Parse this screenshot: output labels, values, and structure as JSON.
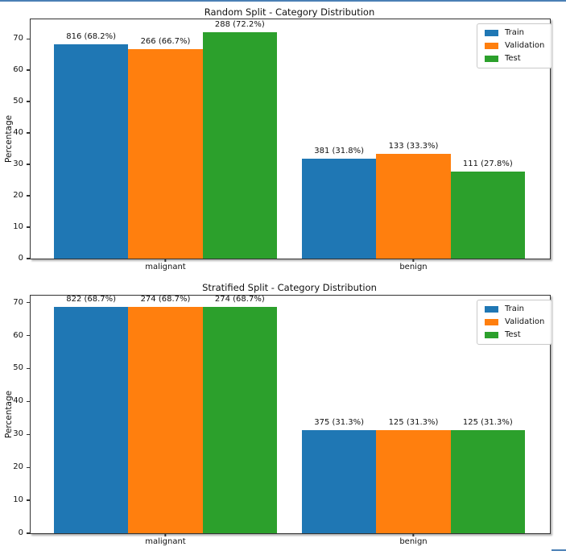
{
  "page": {
    "accent_color": "#4a7fb5",
    "background": "#ffffff"
  },
  "chart_data": [
    {
      "type": "bar",
      "title": "Random Split - Category Distribution",
      "xlabel": "",
      "ylabel": "Percentage",
      "categories": [
        "malignant",
        "benign"
      ],
      "yticks": [
        0,
        10,
        20,
        30,
        40,
        50,
        60,
        70
      ],
      "ylim": [
        0,
        76.2
      ],
      "grid": false,
      "legend_position": "upper right",
      "series": [
        {
          "name": "Train",
          "color": "#1f77b4",
          "values": [
            68.2,
            31.8
          ],
          "counts": [
            816,
            381
          ],
          "labels": [
            "816 (68.2%)",
            "381 (31.8%)"
          ]
        },
        {
          "name": "Validation",
          "color": "#ff7f0e",
          "values": [
            66.7,
            33.3
          ],
          "counts": [
            266,
            133
          ],
          "labels": [
            "266 (66.7%)",
            "133 (33.3%)"
          ]
        },
        {
          "name": "Test",
          "color": "#2ca02c",
          "values": [
            72.2,
            27.8
          ],
          "counts": [
            288,
            111
          ],
          "labels": [
            "288 (72.2%)",
            "111 (27.8%)"
          ]
        }
      ]
    },
    {
      "type": "bar",
      "title": "Stratified Split - Category Distribution",
      "xlabel": "",
      "ylabel": "Percentage",
      "categories": [
        "malignant",
        "benign"
      ],
      "yticks": [
        0,
        10,
        20,
        30,
        40,
        50,
        60,
        70
      ],
      "ylim": [
        0,
        72.1
      ],
      "grid": false,
      "legend_position": "upper right",
      "series": [
        {
          "name": "Train",
          "color": "#1f77b4",
          "values": [
            68.7,
            31.3
          ],
          "counts": [
            822,
            375
          ],
          "labels": [
            "822 (68.7%)",
            "375 (31.3%)"
          ]
        },
        {
          "name": "Validation",
          "color": "#ff7f0e",
          "values": [
            68.7,
            31.3
          ],
          "counts": [
            274,
            125
          ],
          "labels": [
            "274 (68.7%)",
            "125 (31.3%)"
          ]
        },
        {
          "name": "Test",
          "color": "#2ca02c",
          "values": [
            68.7,
            31.3
          ],
          "counts": [
            274,
            125
          ],
          "labels": [
            "274 (68.7%)",
            "125 (31.3%)"
          ]
        }
      ]
    }
  ]
}
